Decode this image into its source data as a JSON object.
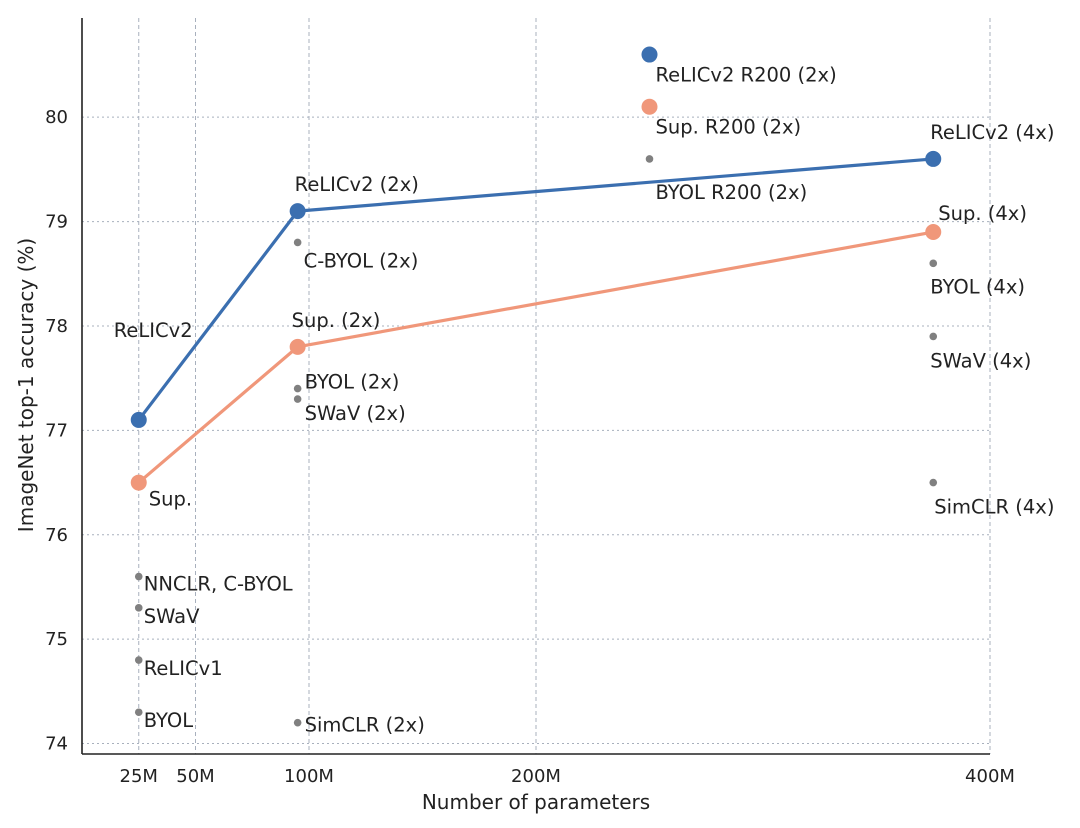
{
  "chart_data": {
    "type": "scatter",
    "xlabel": "Number of parameters",
    "ylabel": "ImageNet top-1 accuracy (%)",
    "xlim": [
      0,
      400
    ],
    "ylim": [
      73.9,
      80.95
    ],
    "x_ticks": [
      {
        "value": 25,
        "label": "25M"
      },
      {
        "value": 50,
        "label": "50M"
      },
      {
        "value": 100,
        "label": "100M"
      },
      {
        "value": 200,
        "label": "200M"
      },
      {
        "value": 400,
        "label": "400M"
      }
    ],
    "y_ticks": [
      {
        "value": 74,
        "label": "74"
      },
      {
        "value": 75,
        "label": "75"
      },
      {
        "value": 76,
        "label": "76"
      },
      {
        "value": 77,
        "label": "77"
      },
      {
        "value": 78,
        "label": "78"
      },
      {
        "value": 79,
        "label": "79"
      },
      {
        "value": 80,
        "label": "80"
      }
    ],
    "grid": true,
    "colors": {
      "relic": "#3b6fb0",
      "sup": "#f0977a",
      "other": "#808080",
      "text": "#222222"
    },
    "series": [
      {
        "key": "relicv2",
        "color": "#3b6fb0",
        "points": [
          {
            "x": 25,
            "y": 77.1,
            "label": "ReLICv2"
          },
          {
            "x": 95,
            "y": 79.1,
            "label": "ReLICv2 (2x)"
          },
          {
            "x": 375,
            "y": 79.6,
            "label": "ReLICv2 (4x)"
          }
        ]
      },
      {
        "key": "sup",
        "color": "#f0977a",
        "points": [
          {
            "x": 25,
            "y": 76.5,
            "label": "Sup."
          },
          {
            "x": 95,
            "y": 77.8,
            "label": "Sup. (2x)"
          },
          {
            "x": 375,
            "y": 78.9,
            "label": "Sup. (4x)"
          }
        ]
      }
    ],
    "standalone_points": [
      {
        "x": 250,
        "y": 80.6,
        "label": "ReLICv2 R200 (2x)",
        "color": "#3b6fb0",
        "size": "large"
      },
      {
        "x": 250,
        "y": 80.1,
        "label": "Sup. R200 (2x)",
        "color": "#f0977a",
        "size": "large"
      },
      {
        "x": 250,
        "y": 79.6,
        "label": "BYOL R200 (2x)",
        "color": "#808080",
        "size": "small"
      },
      {
        "x": 95,
        "y": 78.8,
        "label": "C-BYOL (2x)",
        "color": "#808080",
        "size": "small"
      },
      {
        "x": 95,
        "y": 77.4,
        "label": "BYOL (2x)",
        "color": "#808080",
        "size": "small"
      },
      {
        "x": 95,
        "y": 77.3,
        "label": "SWaV (2x)",
        "color": "#808080",
        "size": "small"
      },
      {
        "x": 95,
        "y": 74.2,
        "label": "SimCLR (2x)",
        "color": "#808080",
        "size": "small"
      },
      {
        "x": 375,
        "y": 78.6,
        "label": "BYOL (4x)",
        "color": "#808080",
        "size": "small"
      },
      {
        "x": 375,
        "y": 77.9,
        "label": "SWaV (4x)",
        "color": "#808080",
        "size": "small"
      },
      {
        "x": 375,
        "y": 76.5,
        "label": "SimCLR (4x)",
        "color": "#808080",
        "size": "small"
      },
      {
        "x": 25,
        "y": 75.6,
        "label": "NNCLR,  C-BYOL",
        "color": "#808080",
        "size": "small"
      },
      {
        "x": 25,
        "y": 75.3,
        "label": "SWaV",
        "color": "#808080",
        "size": "small"
      },
      {
        "x": 25,
        "y": 74.8,
        "label": "ReLICv1",
        "color": "#808080",
        "size": "small"
      },
      {
        "x": 25,
        "y": 74.3,
        "label": "BYOL",
        "color": "#808080",
        "size": "small"
      }
    ]
  }
}
